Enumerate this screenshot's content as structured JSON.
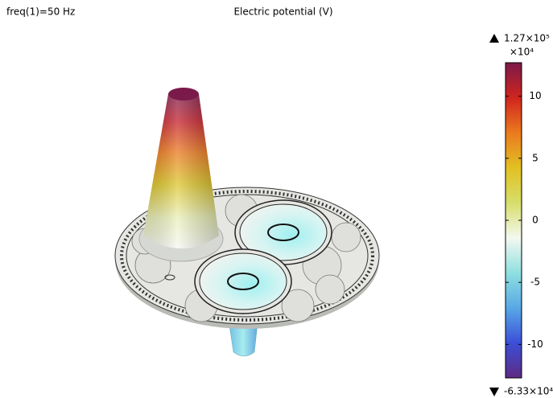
{
  "chart_data": {
    "type": "surface-3d",
    "subtitle": "freq(1)=50 Hz",
    "title": "Electric potential (V)",
    "colorbar": {
      "multiplier": "×10⁴",
      "ylim": [
        -12.7,
        12.7
      ],
      "yticks": [
        -10,
        -5,
        0,
        5,
        10
      ],
      "max": {
        "value": 12.7,
        "label": "1.27×10⁵"
      },
      "min": {
        "value": -6.33,
        "label": "-6.33×10⁴"
      },
      "colormap": [
        "#5e2a84",
        "#3b4fd8",
        "#58a8e6",
        "#8fe0e0",
        "#f4f8f0",
        "#d6de6a",
        "#e2c022",
        "#ea7a1e",
        "#d0241e",
        "#7a1a4a"
      ]
    }
  }
}
